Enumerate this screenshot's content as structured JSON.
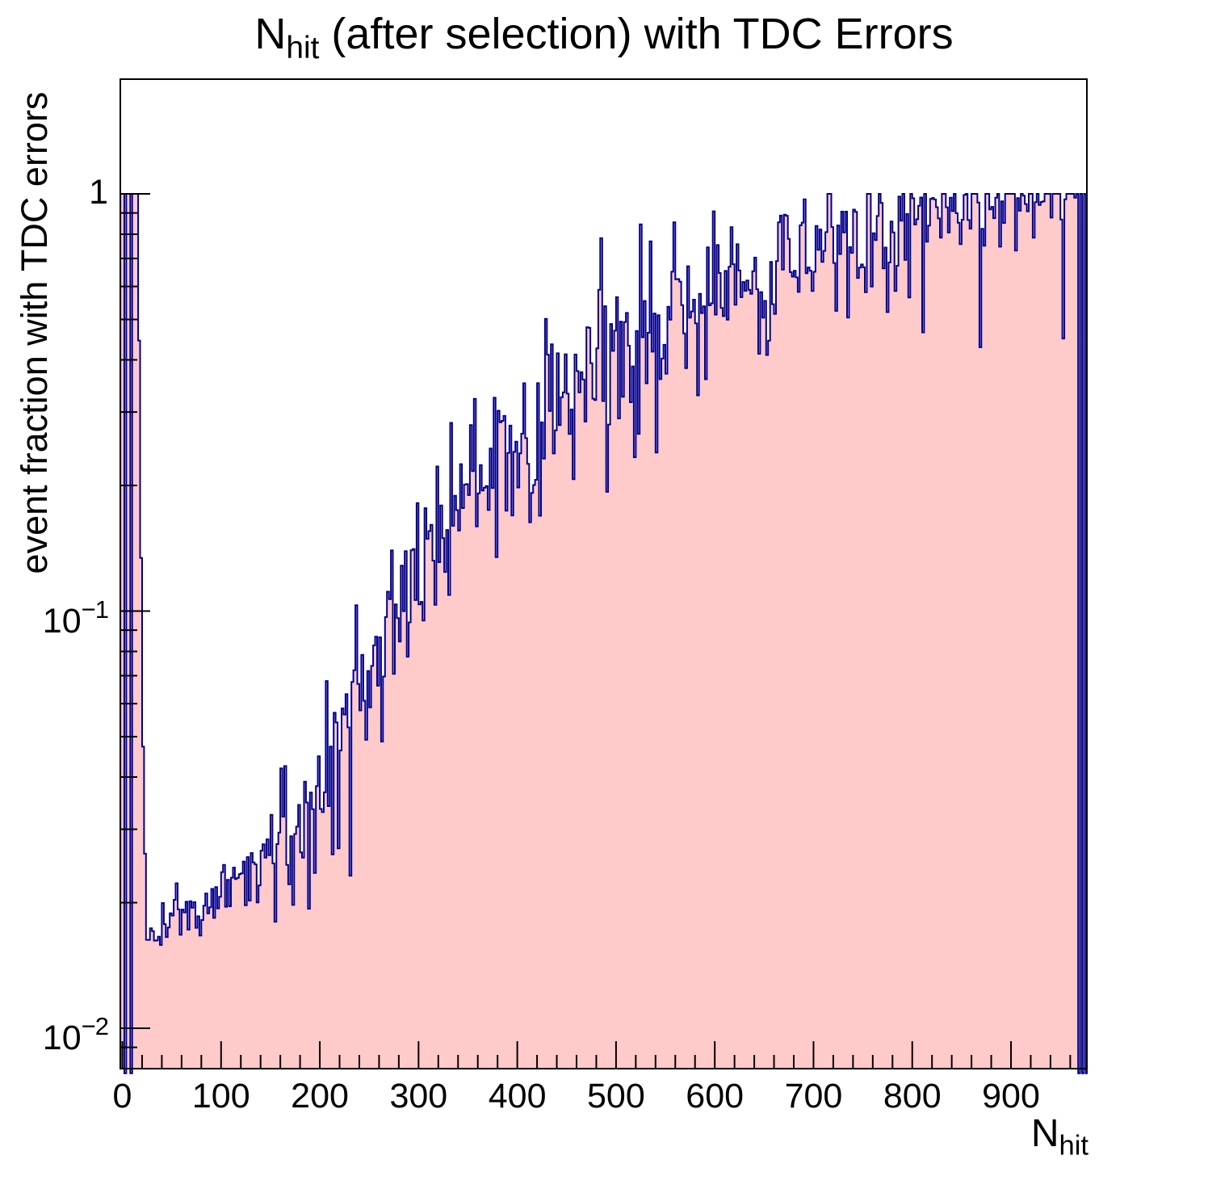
{
  "title": {
    "pre": "N",
    "sub": "hit",
    "post": " (after selection) with TDC Errors"
  },
  "y_axis": {
    "label": "event fraction with TDC errors",
    "ticks": [
      {
        "v": 1,
        "base": "1",
        "exp": ""
      },
      {
        "v": 0.1,
        "base": "10",
        "exp": "−1"
      },
      {
        "v": 0.01,
        "base": "10",
        "exp": "−2"
      }
    ]
  },
  "x_axis": {
    "label_pre": "N",
    "label_sub": "hit",
    "ticks": [
      {
        "v": 0,
        "label": "0"
      },
      {
        "v": 100,
        "label": "100"
      },
      {
        "v": 200,
        "label": "200"
      },
      {
        "v": 300,
        "label": "300"
      },
      {
        "v": 400,
        "label": "400"
      },
      {
        "v": 500,
        "label": "500"
      },
      {
        "v": 600,
        "label": "600"
      },
      {
        "v": 700,
        "label": "700"
      },
      {
        "v": 800,
        "label": "800"
      },
      {
        "v": 900,
        "label": "900"
      }
    ],
    "minor_step": 20
  },
  "chart_data": {
    "type": "histogram-area",
    "title": "N_hit (after selection) with TDC Errors",
    "xlabel": "N_hit",
    "ylabel": "event fraction with TDC errors",
    "ylog": true,
    "bin_width": 2,
    "xlim": [
      -2,
      978
    ],
    "ylim": [
      0.0078,
      1.9
    ],
    "grid": false,
    "legend": "none",
    "colors": {
      "fill": "#ffcaca",
      "line": "#00008b",
      "frame": "#000000",
      "text": "#000000",
      "background": "#ffffff"
    },
    "trend_points": [
      [
        17,
        0.45
      ],
      [
        18,
        0.2
      ],
      [
        20,
        0.075
      ],
      [
        22,
        0.03
      ],
      [
        24,
        0.019
      ],
      [
        28,
        0.0162
      ],
      [
        34,
        0.0165
      ],
      [
        40,
        0.0175
      ],
      [
        50,
        0.0185
      ],
      [
        60,
        0.019
      ],
      [
        70,
        0.0195
      ],
      [
        80,
        0.0198
      ],
      [
        90,
        0.0205
      ],
      [
        100,
        0.0213
      ],
      [
        110,
        0.0222
      ],
      [
        120,
        0.023
      ],
      [
        130,
        0.0242
      ],
      [
        140,
        0.025
      ],
      [
        150,
        0.0258
      ],
      [
        160,
        0.0275
      ],
      [
        170,
        0.0295
      ],
      [
        180,
        0.0315
      ],
      [
        190,
        0.034
      ],
      [
        200,
        0.038
      ],
      [
        210,
        0.043
      ],
      [
        220,
        0.05
      ],
      [
        230,
        0.058
      ],
      [
        240,
        0.066
      ],
      [
        250,
        0.075
      ],
      [
        260,
        0.082
      ],
      [
        270,
        0.09
      ],
      [
        280,
        0.1
      ],
      [
        290,
        0.11
      ],
      [
        300,
        0.125
      ],
      [
        310,
        0.135
      ],
      [
        320,
        0.15
      ],
      [
        330,
        0.16
      ],
      [
        340,
        0.175
      ],
      [
        350,
        0.19
      ],
      [
        360,
        0.2
      ],
      [
        370,
        0.21
      ],
      [
        380,
        0.22
      ],
      [
        390,
        0.235
      ],
      [
        400,
        0.25
      ],
      [
        420,
        0.28
      ],
      [
        440,
        0.31
      ],
      [
        460,
        0.35
      ],
      [
        480,
        0.4
      ],
      [
        500,
        0.44
      ],
      [
        520,
        0.47
      ],
      [
        540,
        0.5
      ],
      [
        560,
        0.54
      ],
      [
        580,
        0.57
      ],
      [
        600,
        0.6
      ],
      [
        620,
        0.64
      ],
      [
        640,
        0.67
      ],
      [
        660,
        0.7
      ],
      [
        680,
        0.72
      ],
      [
        700,
        0.75
      ],
      [
        720,
        0.78
      ],
      [
        740,
        0.8
      ],
      [
        760,
        0.83
      ],
      [
        780,
        0.85
      ],
      [
        800,
        0.87
      ],
      [
        820,
        0.89
      ],
      [
        840,
        0.91
      ],
      [
        860,
        0.93
      ],
      [
        880,
        0.95
      ],
      [
        900,
        0.98
      ],
      [
        910,
        1.0
      ],
      [
        978,
        1.0
      ]
    ],
    "overrides": [
      [
        -2,
        2,
        1.0
      ],
      [
        2,
        4,
        0.0078
      ],
      [
        4,
        8,
        1.0
      ],
      [
        8,
        10,
        0.0078
      ],
      [
        10,
        17,
        1.0
      ],
      [
        952,
        954,
        0.45
      ]
    ],
    "stripes": {
      "from_x": 966,
      "high": 1.0,
      "low": 0.0078
    },
    "noise": {
      "seed": 20240707,
      "spike_prob": 0.05,
      "sigma_dex": [
        [
          17,
          0
        ],
        [
          40,
          0.02
        ],
        [
          150,
          0.035
        ],
        [
          300,
          0.09
        ],
        [
          560,
          0.11
        ],
        [
          905,
          0.085
        ],
        [
          979,
          0.05
        ]
      ]
    }
  }
}
